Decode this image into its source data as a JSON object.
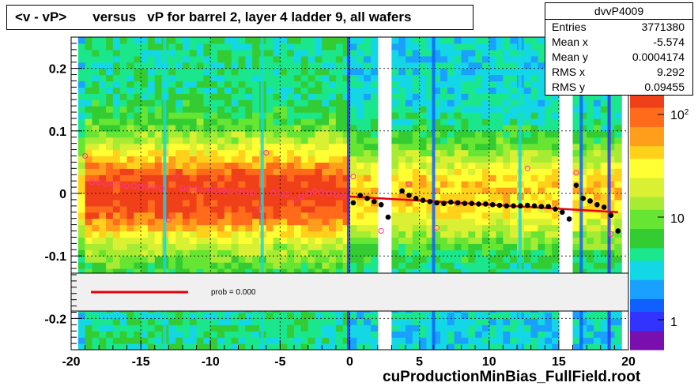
{
  "title": "<v - vP>       versus   vP for barrel 2, layer 4 ladder 9, all wafers",
  "stats": {
    "name": "dvvP4009",
    "rows": [
      {
        "key": "Entries",
        "value": "3771380"
      },
      {
        "key": "Mean x",
        "value": "-5.574"
      },
      {
        "key": "Mean y",
        "value": "0.0004174"
      },
      {
        "key": "RMS x",
        "value": "9.292"
      },
      {
        "key": "RMS y",
        "value": "0.09455"
      }
    ]
  },
  "footer": "cuProductionMinBias_FullField.root",
  "legend": {
    "label": "prob = 0.000",
    "line_color": "#e8000b"
  },
  "colors": {
    "frame": "#000000",
    "legend_bg": "#f0f0f0",
    "fit": "#e8000b",
    "open_marker": "#ff3399",
    "filled_marker": "#000000"
  },
  "chart_data": {
    "type": "heatmap",
    "xlim": [
      -20,
      20
    ],
    "ylim": [
      -0.25,
      0.25
    ],
    "x_ticks": [
      -20,
      -15,
      -10,
      -5,
      0,
      5,
      10,
      15,
      20
    ],
    "y_ticks": [
      -0.2,
      -0.1,
      0,
      0.1,
      0.2
    ],
    "y_tick_labels": [
      "-0.2",
      "-0.1",
      "0",
      "0.1",
      "0.2"
    ],
    "grid": true,
    "z_scale": "log",
    "z_tick_labels": [
      "1",
      "10",
      "10^2"
    ],
    "open_points": {
      "x": [
        -19,
        -18.5,
        -18,
        -17.5,
        -17,
        -16.5,
        -16,
        -15.5,
        -15,
        -14.5,
        -14,
        -13.5,
        -13,
        -12.5,
        -12,
        -11.5,
        -11,
        -10.5,
        -10,
        -9.5,
        -9,
        -8.5,
        -8,
        -7.5,
        -7,
        -6.5,
        -6,
        -5.5,
        -5,
        -4.5,
        -4,
        -3.5,
        -3,
        -2.5,
        -2,
        -1.5,
        -1,
        -0.5,
        0.25,
        2.25,
        4.25,
        6.25,
        12.75,
        16.25,
        17.25,
        18.75
      ],
      "y": [
        0.06,
        0.018,
        0.018,
        0.015,
        0.015,
        0.013,
        0.012,
        0.012,
        0.011,
        0.011,
        0.01,
        0.008,
        -0.042,
        0.028,
        0.008,
        0.007,
        0.007,
        0.006,
        0.006,
        0.005,
        0.004,
        0.003,
        0.003,
        0.002,
        0.001,
        -0.023,
        0.065,
        0.001,
        0.0,
        -0.001,
        -0.01,
        -0.005,
        0.0,
        0.003,
        0.002,
        0.0,
        -0.002,
        -0.004,
        0.027,
        -0.06,
        0.015,
        -0.055,
        0.04,
        0.033,
        -0.012,
        -0.065
      ]
    },
    "filled_points": {
      "x": [
        0.25,
        0.75,
        1.25,
        1.75,
        2.25,
        2.75,
        3.75,
        4.25,
        4.75,
        5.25,
        5.75,
        6.25,
        6.75,
        7.25,
        7.75,
        8.25,
        8.75,
        9.25,
        9.75,
        10.25,
        10.75,
        11.25,
        11.75,
        12.25,
        12.75,
        13.25,
        13.75,
        14.25,
        14.75,
        15.25,
        15.75,
        16.25,
        16.75,
        17.25,
        17.75,
        18.25,
        18.75,
        19.25
      ],
      "y": [
        -0.015,
        -0.003,
        -0.008,
        -0.013,
        -0.018,
        -0.038,
        0.004,
        -0.003,
        -0.008,
        -0.011,
        -0.013,
        -0.015,
        -0.016,
        -0.014,
        -0.015,
        -0.016,
        -0.016,
        -0.017,
        -0.017,
        -0.018,
        -0.019,
        -0.02,
        -0.02,
        -0.02,
        -0.019,
        -0.02,
        -0.021,
        -0.021,
        -0.025,
        -0.03,
        -0.041,
        0.013,
        -0.008,
        -0.012,
        -0.018,
        -0.022,
        -0.035,
        -0.06
      ]
    },
    "fit_line": {
      "x": [
        0,
        19.25
      ],
      "y": [
        -0.005,
        -0.03
      ]
    }
  }
}
